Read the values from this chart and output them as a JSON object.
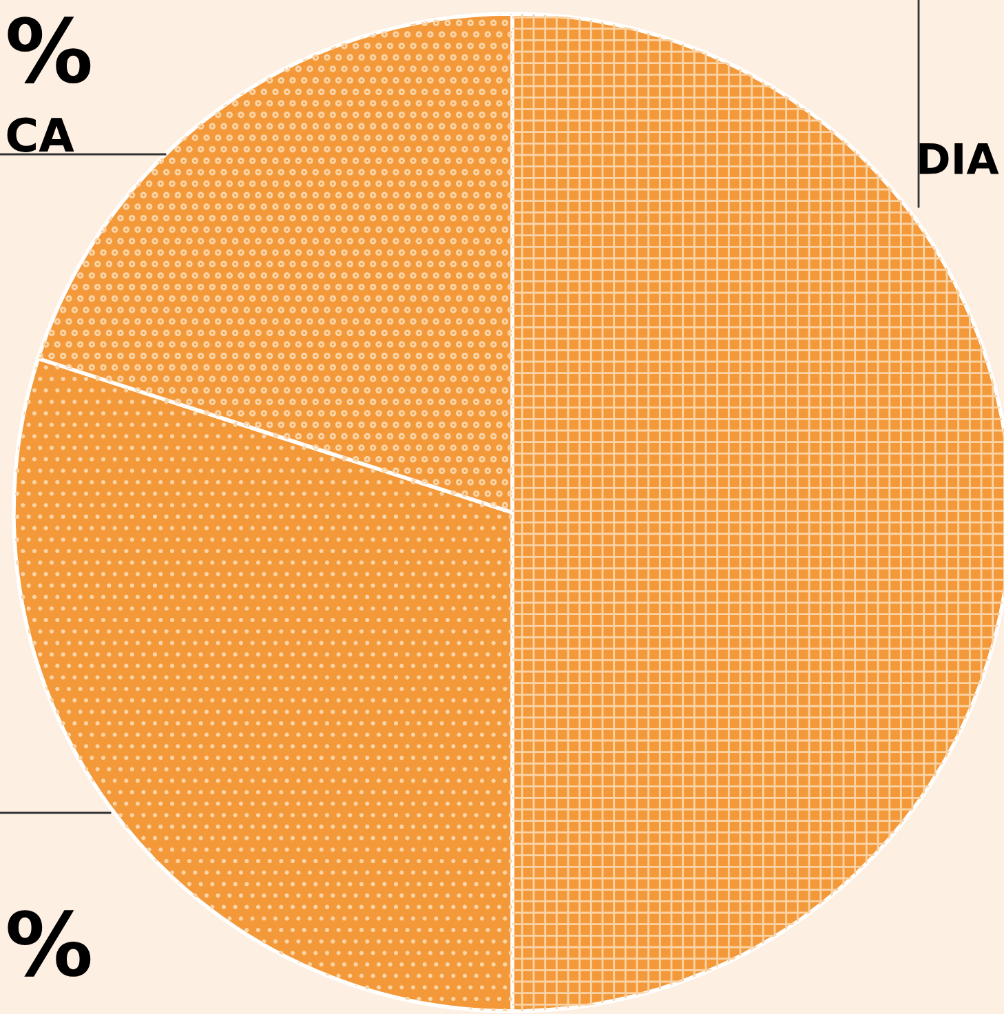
{
  "chart_data": {
    "type": "pie",
    "categories": [
      null,
      null,
      null
    ],
    "values": [
      50,
      30,
      20
    ],
    "colors": [
      "#f4993a",
      "#f4993a",
      "#f4993a"
    ],
    "annotations": [
      "%",
      "CA",
      "%",
      "DIA"
    ]
  }
}
